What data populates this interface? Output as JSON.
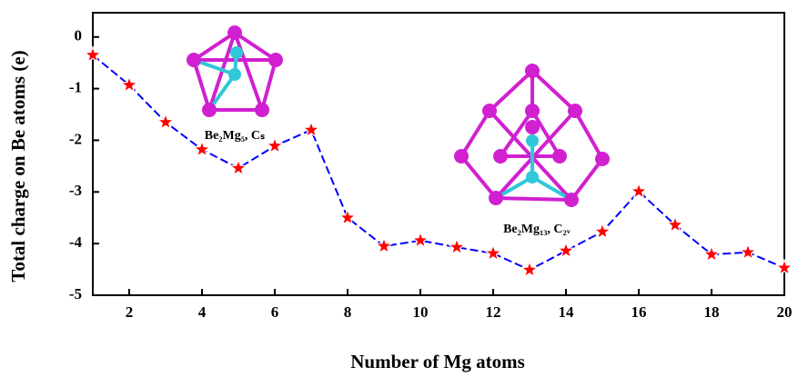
{
  "chart_data": {
    "type": "line",
    "xlabel": "Number of Mg atoms",
    "ylabel": "Total charge on Be atoms (e)",
    "x": [
      1,
      2,
      3,
      4,
      5,
      6,
      7,
      8,
      9,
      10,
      11,
      12,
      13,
      14,
      15,
      16,
      17,
      18,
      19,
      20
    ],
    "series": [
      {
        "color": "#0000ff",
        "marker_color": "#ff0000",
        "values": [
          -0.35,
          -0.93,
          -1.65,
          -2.18,
          -2.54,
          -2.11,
          -1.8,
          -3.5,
          -4.05,
          -3.94,
          -4.07,
          -4.19,
          -4.51,
          -4.14,
          -3.77,
          -2.99,
          -3.64,
          -4.21,
          -4.17,
          -4.47
        ]
      }
    ],
    "xlim": [
      1,
      20
    ],
    "xticks": [
      2,
      4,
      6,
      8,
      10,
      12,
      14,
      16,
      18,
      20
    ],
    "ylim": [
      -5,
      0.47
    ],
    "yticks": [
      0,
      -1,
      -2,
      -3,
      -4,
      -5
    ],
    "annotations": [
      "Be₂Mg₅, Cₛ",
      "Be₂Mg₁₃, C₂ᵥ"
    ]
  }
}
